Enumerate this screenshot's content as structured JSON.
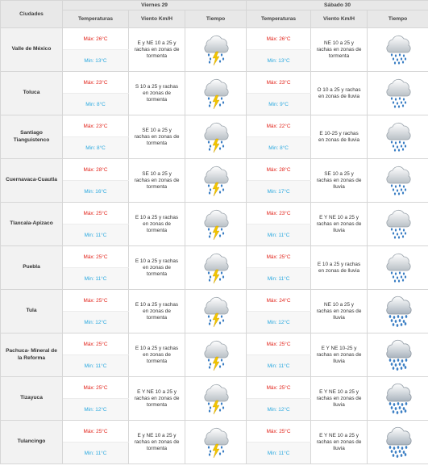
{
  "header": {
    "cities_label": "Ciudades",
    "days": [
      {
        "label": "Viernes 29",
        "cols": {
          "temps": "Temperaturas",
          "wind": "Viento Km/H",
          "weather": "Tiempo"
        }
      },
      {
        "label": "Sábado 30",
        "cols": {
          "temps": "Temperaturas",
          "wind": "Viento Km/H",
          "weather": "Tiempo"
        }
      }
    ]
  },
  "rows": [
    {
      "city": "Valle de México",
      "d1": {
        "max": "Máx: 26°C",
        "min": "Min: 13°C",
        "wind": "E y NE 10 a 25 y rachas en zonas de tormenta",
        "icon": "storm-icon"
      },
      "d2": {
        "max": "Máx: 26°C",
        "min": "Min: 13°C",
        "wind": "NE 10 a 25 y rachas en zonas de tormenta",
        "icon": "rain-icon"
      }
    },
    {
      "city": "Toluca",
      "d1": {
        "max": "Máx: 23°C",
        "min": "Min: 8°C",
        "wind": "S 10 a 25 y rachas en zonas de tormenta",
        "icon": "storm-icon"
      },
      "d2": {
        "max": "Máx: 23°C",
        "min": "Min: 9°C",
        "wind": "O 10 a 25 y rachas en zonas de lluvia",
        "icon": "rain-icon"
      }
    },
    {
      "city": "Santiago Tianguistenco",
      "d1": {
        "max": "Máx: 23°C",
        "min": "Min: 8°C",
        "wind": "SE 10 a 25 y rachas en zonas de tormenta",
        "icon": "storm-icon"
      },
      "d2": {
        "max": "Máx: 22°C",
        "min": "Min: 8°C",
        "wind": "E 10-25 y rachas en zonas de lluvia",
        "icon": "rain-icon"
      }
    },
    {
      "city": "Cuernavaca-Cuautla",
      "d1": {
        "max": "Máx: 28°C",
        "min": "Min: 16°C",
        "wind": "SE 10 a 25 y rachas en zonas de tormenta",
        "icon": "storm-icon"
      },
      "d2": {
        "max": "Máx: 28°C",
        "min": "Min: 17°C",
        "wind": "SE 10 a 25 y rachas en zonas de lluvia",
        "icon": "rain-icon"
      }
    },
    {
      "city": "Tlaxcala-Apizaco",
      "d1": {
        "max": "Máx: 25°C",
        "min": "Min: 11°C",
        "wind": "E 10 a 25 y rachas en zonas de tormenta",
        "icon": "storm-icon"
      },
      "d2": {
        "max": "Máx: 23°C",
        "min": "Min: 11°C",
        "wind": "E Y NE 10 a 25 y rachas en zonas de lluvia",
        "icon": "rain-icon"
      }
    },
    {
      "city": "Puebla",
      "d1": {
        "max": "Máx: 25°C",
        "min": "Min: 11°C",
        "wind": "E 10 a 25 y rachas en zonas de tormenta",
        "icon": "storm-icon"
      },
      "d2": {
        "max": "Máx: 25°C",
        "min": "Min: 11°C",
        "wind": "E 10 a 25 y rachas en zonas de lluvia",
        "icon": "rain-icon"
      }
    },
    {
      "city": "Tula",
      "d1": {
        "max": "Máx: 25°C",
        "min": "Min: 12°C",
        "wind": "E 10 a 25 y rachas en zonas de tormenta",
        "icon": "storm-icon"
      },
      "d2": {
        "max": "Máx: 24°C",
        "min": "Min: 12°C",
        "wind": "NE 10 a 25 y rachas en zonas de lluvia",
        "icon": "heavy-rain-icon"
      }
    },
    {
      "city": "Pachuca- Mineral de la Reforma",
      "d1": {
        "max": "Máx: 25°C",
        "min": "Min: 11°C",
        "wind": "E 10 a 25 y rachas en zonas de tormenta",
        "icon": "storm-icon"
      },
      "d2": {
        "max": "Máx: 25°C",
        "min": "Min: 11°C",
        "wind": "E Y NE 10-25 y rachas en zonas de lluvia",
        "icon": "heavy-rain-icon"
      }
    },
    {
      "city": "Tizayuca",
      "d1": {
        "max": "Máx: 25°C",
        "min": "Min: 12°C",
        "wind": "E Y NE 10 a 25 y rachas en zonas de tormenta",
        "icon": "storm-icon"
      },
      "d2": {
        "max": "Máx: 25°C",
        "min": "Min: 12°C",
        "wind": "E Y NE 10 a 25 y rachas en zonas de lluvia",
        "icon": "heavy-rain-icon"
      }
    },
    {
      "city": "Tulancingo",
      "d1": {
        "max": "Máx: 25°C",
        "min": "Min: 11°C",
        "wind": "E y NE 10 a 25 y rachas en zonas de tormenta",
        "icon": "storm-icon"
      },
      "d2": {
        "max": "Máx: 25°C",
        "min": "Min: 11°C",
        "wind": "E Y NE 10 a 25 y rachas en zonas de lluvia",
        "icon": "heavy-rain-icon"
      }
    }
  ]
}
